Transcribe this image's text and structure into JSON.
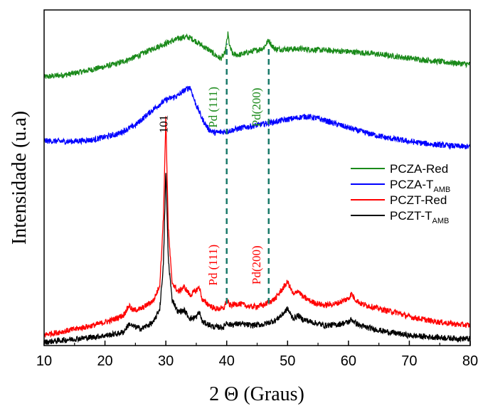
{
  "chart_data": {
    "type": "line",
    "title": "",
    "xlabel": "2 Θ (Graus)",
    "ylabel": "Intensidade (u.a)",
    "xlim": [
      10,
      80
    ],
    "ylim": [
      0,
      100
    ],
    "x_ticks": [
      "10",
      "20",
      "30",
      "40",
      "50",
      "60",
      "70",
      "80"
    ],
    "y_ticks_shown": false,
    "grid": false,
    "legend_position": "right",
    "series": [
      {
        "name": "PCZA-Red",
        "legend_main": "PCZA-Red",
        "legend_sub": "",
        "color": "#1a8a1a",
        "points": [
          [
            10,
            80.0
          ],
          [
            14,
            80.8
          ],
          [
            18,
            82.3
          ],
          [
            22,
            84.0
          ],
          [
            25,
            86.0
          ],
          [
            28,
            88.6
          ],
          [
            30,
            90.0
          ],
          [
            32,
            91.4
          ],
          [
            33,
            92.0
          ],
          [
            34,
            91.7
          ],
          [
            35,
            90.6
          ],
          [
            36,
            89.3
          ],
          [
            37,
            88.2
          ],
          [
            38,
            86.7
          ],
          [
            39,
            85.5
          ],
          [
            39.7,
            87.0
          ],
          [
            40.2,
            92.8
          ],
          [
            40.5,
            89.0
          ],
          [
            41,
            86.8
          ],
          [
            42,
            86.6
          ],
          [
            44,
            87.6
          ],
          [
            46,
            88.6
          ],
          [
            46.9,
            91.0
          ],
          [
            47.4,
            89.4
          ],
          [
            48,
            88.3
          ],
          [
            52,
            88.4
          ],
          [
            56,
            88.0
          ],
          [
            60,
            87.6
          ],
          [
            64,
            87.0
          ],
          [
            68,
            86.1
          ],
          [
            72,
            85.2
          ],
          [
            76,
            84.4
          ],
          [
            80,
            83.8
          ]
        ]
      },
      {
        "name": "PCZA-TAMB",
        "legend_main": "PCZA-T",
        "legend_sub": "AMB",
        "color": "#0000ff",
        "points": [
          [
            10,
            61.0
          ],
          [
            14,
            60.8
          ],
          [
            18,
            61.3
          ],
          [
            22,
            63.0
          ],
          [
            25,
            65.7
          ],
          [
            28,
            70.5
          ],
          [
            30,
            73.2
          ],
          [
            32,
            74.5
          ],
          [
            33,
            76.0
          ],
          [
            34,
            77.0
          ],
          [
            34.8,
            72.5
          ],
          [
            36,
            67.5
          ],
          [
            37,
            64.5
          ],
          [
            38,
            63.4
          ],
          [
            40,
            63.8
          ],
          [
            42,
            64.7
          ],
          [
            46,
            66.0
          ],
          [
            50,
            67.4
          ],
          [
            53,
            68.3
          ],
          [
            55,
            67.7
          ],
          [
            58,
            66.0
          ],
          [
            62,
            63.8
          ],
          [
            66,
            62.0
          ],
          [
            70,
            60.8
          ],
          [
            74,
            59.9
          ],
          [
            78,
            59.4
          ],
          [
            80,
            59.2
          ]
        ]
      },
      {
        "name": "PCZT-Red",
        "legend_main": "PCZT-Red",
        "legend_sub": "",
        "color": "#ff0000",
        "points": [
          [
            10,
            3.2
          ],
          [
            14,
            4.5
          ],
          [
            18,
            6.0
          ],
          [
            21,
            7.5
          ],
          [
            23,
            9.0
          ],
          [
            24,
            12.0
          ],
          [
            24.5,
            10.5
          ],
          [
            26,
            11.0
          ],
          [
            28,
            13.5
          ],
          [
            29,
            18.0
          ],
          [
            29.6,
            38.0
          ],
          [
            30,
            68.0
          ],
          [
            30.4,
            35.0
          ],
          [
            31,
            19.0
          ],
          [
            32,
            16.0
          ],
          [
            33,
            17.5
          ],
          [
            34,
            15.0
          ],
          [
            35,
            16.5
          ],
          [
            35.5,
            17.5
          ],
          [
            36,
            13.5
          ],
          [
            38,
            11.0
          ],
          [
            39.5,
            11.0
          ],
          [
            40,
            13.5
          ],
          [
            40.5,
            12.0
          ],
          [
            42,
            12.5
          ],
          [
            44,
            11.5
          ],
          [
            46,
            12.0
          ],
          [
            47,
            13.0
          ],
          [
            48,
            14.0
          ],
          [
            49,
            16.5
          ],
          [
            50,
            19.0
          ],
          [
            50.5,
            17.0
          ],
          [
            51,
            15.0
          ],
          [
            51.7,
            16.5
          ],
          [
            52.5,
            14.5
          ],
          [
            54,
            13.0
          ],
          [
            56,
            12.0
          ],
          [
            58,
            12.5
          ],
          [
            60,
            14.0
          ],
          [
            60.5,
            15.5
          ],
          [
            61,
            14.0
          ],
          [
            62,
            12.5
          ],
          [
            64,
            11.5
          ],
          [
            66,
            10.5
          ],
          [
            68,
            9.8
          ],
          [
            70,
            8.6
          ],
          [
            74,
            7.2
          ],
          [
            78,
            6.3
          ],
          [
            80,
            6.0
          ]
        ]
      },
      {
        "name": "PCZT-TAMB",
        "legend_main": "PCZT-T",
        "legend_sub": "AMB",
        "color": "#000000",
        "points": [
          [
            10,
            1.0
          ],
          [
            14,
            1.8
          ],
          [
            18,
            2.5
          ],
          [
            22,
            3.5
          ],
          [
            23,
            4.0
          ],
          [
            24,
            6.5
          ],
          [
            24.5,
            5.8
          ],
          [
            26,
            5.0
          ],
          [
            28,
            7.0
          ],
          [
            29,
            11.0
          ],
          [
            29.6,
            24.0
          ],
          [
            30,
            52.0
          ],
          [
            30.4,
            26.0
          ],
          [
            31,
            14.0
          ],
          [
            32,
            10.0
          ],
          [
            33,
            10.5
          ],
          [
            34,
            8.0
          ],
          [
            35,
            8.5
          ],
          [
            35.5,
            10.0
          ],
          [
            36,
            7.0
          ],
          [
            38,
            5.5
          ],
          [
            39.5,
            5.5
          ],
          [
            40,
            7.0
          ],
          [
            40.5,
            6.2
          ],
          [
            42,
            6.5
          ],
          [
            44,
            6.0
          ],
          [
            46,
            6.3
          ],
          [
            48,
            7.5
          ],
          [
            49,
            9.0
          ],
          [
            50,
            11.0
          ],
          [
            50.5,
            9.2
          ],
          [
            51,
            8.0
          ],
          [
            51.7,
            9.0
          ],
          [
            52.5,
            7.8
          ],
          [
            54,
            7.0
          ],
          [
            56,
            6.0
          ],
          [
            58,
            6.2
          ],
          [
            60,
            7.0
          ],
          [
            60.5,
            7.8
          ],
          [
            61,
            7.0
          ],
          [
            62,
            5.8
          ],
          [
            64,
            5.0
          ],
          [
            66,
            4.2
          ],
          [
            68,
            3.6
          ],
          [
            70,
            3.0
          ],
          [
            74,
            2.5
          ],
          [
            78,
            2.1
          ],
          [
            80,
            2.0
          ]
        ]
      }
    ],
    "reference_lines": [
      {
        "x": 40.0,
        "y_from": 12.5,
        "y_to": 90.0,
        "color": "#1a7a6a"
      },
      {
        "x": 46.9,
        "y_from": 12.5,
        "y_to": 89.5,
        "color": "#1a7a6a"
      }
    ],
    "annotations": [
      {
        "text": "Pd (111)",
        "x": 38.4,
        "y": 71.0,
        "color": "#1a8a1a",
        "vertical": true
      },
      {
        "text": "Pd(200)",
        "x": 45.5,
        "y": 71.0,
        "color": "#1a8a1a",
        "vertical": true
      },
      {
        "text": "101",
        "x": 30.3,
        "y": 66.0,
        "color": "#000000",
        "vertical": true
      },
      {
        "text": "Pd (111)",
        "x": 38.4,
        "y": 24.0,
        "color": "#ff0000",
        "vertical": true
      },
      {
        "text": "Pd(200)",
        "x": 45.5,
        "y": 24.0,
        "color": "#ff0000",
        "vertical": true
      }
    ]
  }
}
